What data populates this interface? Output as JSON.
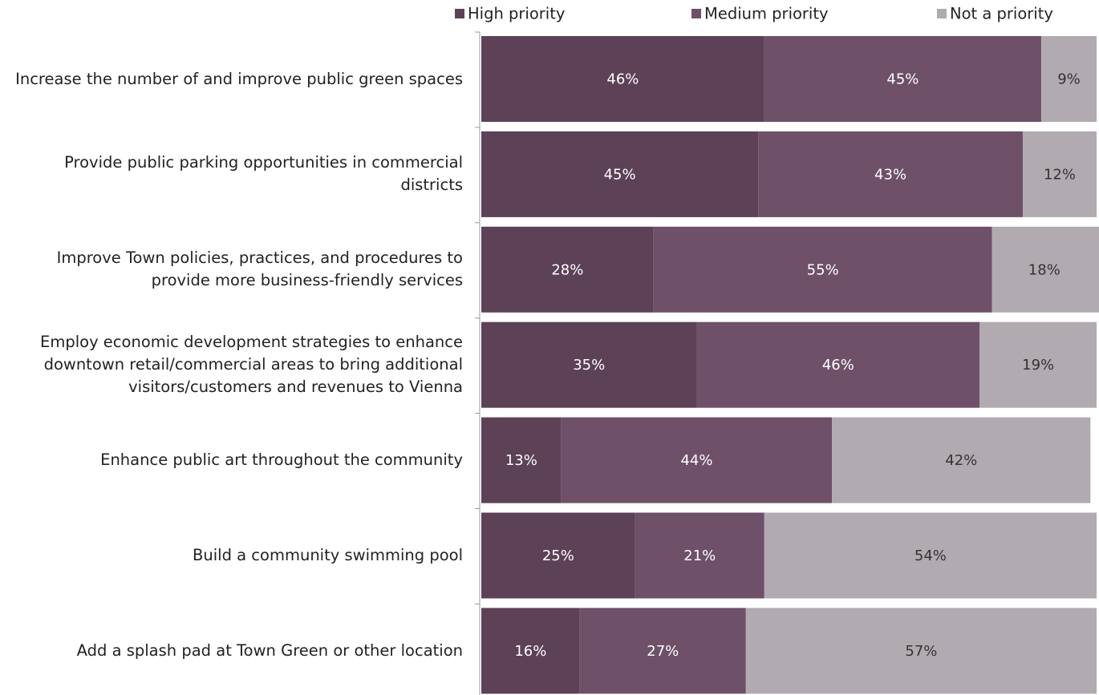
{
  "chart_data": {
    "type": "stacked-bar-horizontal",
    "categories": [
      "Increase the number of and improve public green spaces",
      "Provide public parking opportunities in commercial districts",
      "Improve Town policies, practices, and procedures to provide more business-friendly services",
      "Employ economic development strategies to enhance downtown retail/commercial areas to bring additional visitors/customers and revenues to Vienna",
      "Enhance public art throughout the community",
      "Build a community swimming pool",
      "Add a splash pad at Town Green or other location"
    ],
    "series": [
      {
        "name": "High priority",
        "color": "#5c4157",
        "values": [
          46,
          45,
          28,
          35,
          13,
          25,
          16
        ],
        "value_labels": [
          "46%",
          "45%",
          "28%",
          "35%",
          "13%",
          "25%",
          "16%"
        ]
      },
      {
        "name": "Medium priority",
        "color": "#6e5068",
        "values": [
          45,
          43,
          55,
          46,
          44,
          21,
          27
        ],
        "value_labels": [
          "45%",
          "43%",
          "55%",
          "46%",
          "44%",
          "21%",
          "27%"
        ]
      },
      {
        "name": "Not a priority",
        "color": "#b2aab1",
        "values": [
          9,
          12,
          18,
          19,
          42,
          54,
          57
        ],
        "value_labels": [
          "9%",
          "12%",
          "18%",
          "19%",
          "42%",
          "54%",
          "57%"
        ]
      }
    ],
    "xlim": [
      0,
      100
    ],
    "legend": "top"
  }
}
